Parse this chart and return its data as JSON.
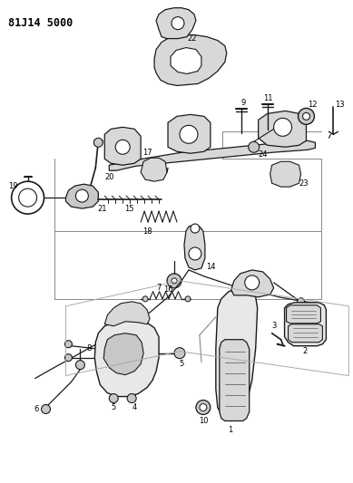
{
  "title": "81J14 5000",
  "bg_color": "#ffffff",
  "line_color": "#1a1a1a",
  "fig_width": 3.89,
  "fig_height": 5.33,
  "dpi": 100,
  "label_fontsize": 6.0,
  "title_fontsize": 8.5
}
